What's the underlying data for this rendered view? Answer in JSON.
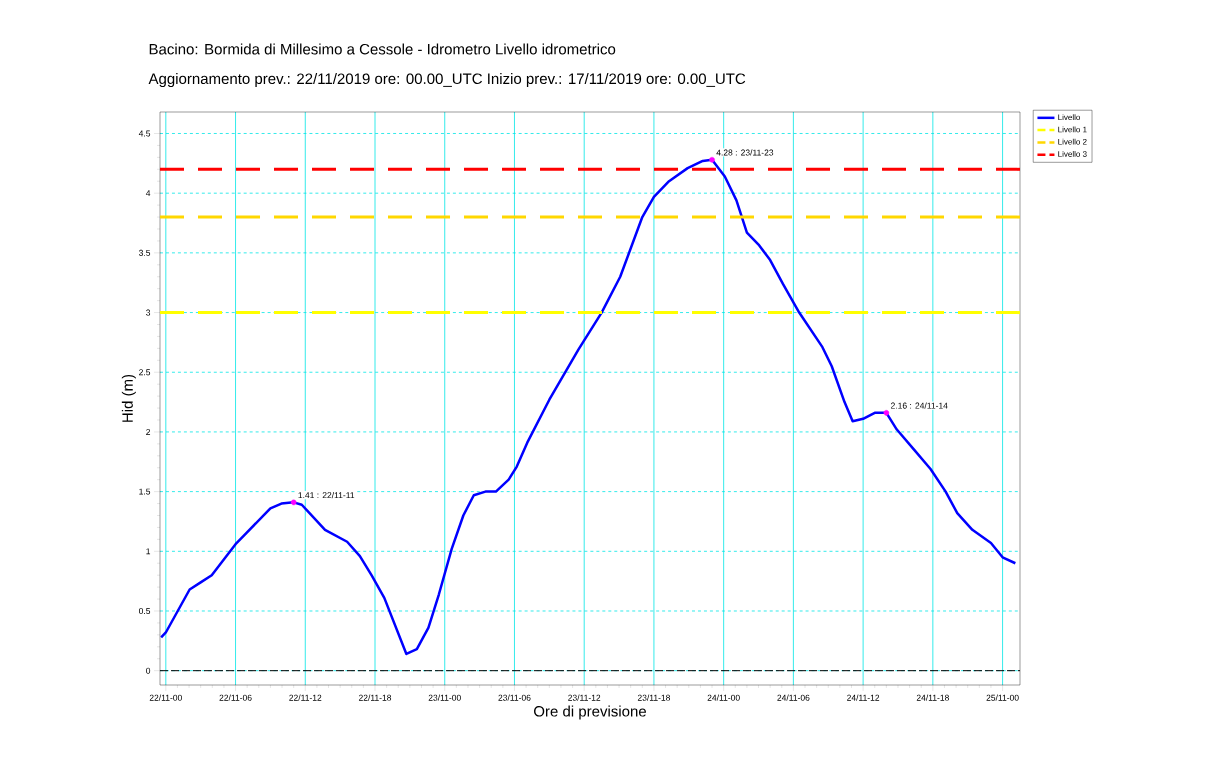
{
  "chart_data": {
    "type": "line",
    "title": "Bacino:  Bormida di Millesimo a Cessole - Idrometro        Livello idrometrico",
    "subtitle": "Aggiornamento prev.: 22/11/2019 ore: 00.00_UTC     Inizio prev.: 17/11/2019 ore: 0.00_UTC",
    "xlabel": "Ore di previsione",
    "ylabel": "Hid (m)",
    "xlim": [
      "2019-11-21T23:30",
      "2019-11-25T01:30"
    ],
    "ylim": [
      -0.12,
      4.68
    ],
    "xticks": [
      {
        "value": "2019-11-22T00:00",
        "label": "22/11-00"
      },
      {
        "value": "2019-11-22T06:00",
        "label": "22/11-06"
      },
      {
        "value": "2019-11-22T12:00",
        "label": "22/11-12"
      },
      {
        "value": "2019-11-22T18:00",
        "label": "22/11-18"
      },
      {
        "value": "2019-11-23T00:00",
        "label": "23/11-00"
      },
      {
        "value": "2019-11-23T06:00",
        "label": "23/11-06"
      },
      {
        "value": "2019-11-23T12:00",
        "label": "23/11-12"
      },
      {
        "value": "2019-11-23T18:00",
        "label": "23/11-18"
      },
      {
        "value": "2019-11-24T00:00",
        "label": "24/11-00"
      },
      {
        "value": "2019-11-24T06:00",
        "label": "24/11-06"
      },
      {
        "value": "2019-11-24T12:00",
        "label": "24/11-12"
      },
      {
        "value": "2019-11-24T18:00",
        "label": "24/11-18"
      },
      {
        "value": "2019-11-25T00:00",
        "label": "25/11-00"
      }
    ],
    "yticks": [
      0,
      0.5,
      1,
      1.5,
      2,
      2.5,
      3,
      3.5,
      4,
      4.5
    ],
    "grid": true,
    "legend": "right",
    "series": [
      {
        "name": "Livello",
        "color": "#0000ff",
        "line_style": "solid",
        "marker": "none",
        "x": [
          "2019-11-21T23:36",
          "2019-11-22T00:00",
          "2019-11-22T02:03",
          "2019-11-22T03:00",
          "2019-11-22T03:57",
          "2019-11-22T06:00",
          "2019-11-22T06:48",
          "2019-11-22T09:00",
          "2019-11-22T09:57",
          "2019-11-22T11:00",
          "2019-11-22T11:42",
          "2019-11-22T13:42",
          "2019-11-22T15:36",
          "2019-11-22T16:42",
          "2019-11-22T17:42",
          "2019-11-22T18:48",
          "2019-11-22T20:42",
          "2019-11-22T21:36",
          "2019-11-22T22:36",
          "2019-11-22T23:30",
          "2019-11-23T00:36",
          "2019-11-23T01:36",
          "2019-11-23T02:30",
          "2019-11-23T03:30",
          "2019-11-23T04:24",
          "2019-11-23T05:30",
          "2019-11-23T06:12",
          "2019-11-23T07:06",
          "2019-11-23T09:00",
          "2019-11-23T11:30",
          "2019-11-23T13:30",
          "2019-11-23T15:06",
          "2019-11-23T17:00",
          "2019-11-23T18:00",
          "2019-11-23T19:18",
          "2019-11-23T20:54",
          "2019-11-23T22:12",
          "2019-11-23T23:00",
          "2019-11-24T00:06",
          "2019-11-24T01:06",
          "2019-11-24T02:00",
          "2019-11-24T03:00",
          "2019-11-24T04:00",
          "2019-11-24T05:06",
          "2019-11-24T06:30",
          "2019-11-24T08:30",
          "2019-11-24T09:18",
          "2019-11-24T10:24",
          "2019-11-24T11:06",
          "2019-11-24T12:00",
          "2019-11-24T13:00",
          "2019-11-24T14:00",
          "2019-11-24T14:54",
          "2019-11-24T16:24",
          "2019-11-24T17:48",
          "2019-11-24T19:06",
          "2019-11-24T20:06",
          "2019-11-24T21:24",
          "2019-11-24T23:00",
          "2019-11-25T00:00",
          "2019-11-25T01:06"
        ],
        "values": [
          0.28,
          0.32,
          0.68,
          0.74,
          0.8,
          1.06,
          1.14,
          1.36,
          1.4,
          1.41,
          1.39,
          1.18,
          1.08,
          0.96,
          0.8,
          0.61,
          0.14,
          0.18,
          0.36,
          0.64,
          1.02,
          1.3,
          1.47,
          1.5,
          1.5,
          1.6,
          1.71,
          1.91,
          2.27,
          2.69,
          3.0,
          3.3,
          3.8,
          3.97,
          4.1,
          4.21,
          4.27,
          4.28,
          4.14,
          3.94,
          3.67,
          3.57,
          3.44,
          3.24,
          3.0,
          2.71,
          2.55,
          2.25,
          2.09,
          2.11,
          2.16,
          2.16,
          2.02,
          1.85,
          1.69,
          1.5,
          1.32,
          1.18,
          1.07,
          0.95,
          0.9
        ]
      },
      {
        "type": "scatter",
        "color": "#ff00ff",
        "marker": "circle",
        "x": [
          "2019-11-22T11:00",
          "2019-11-23T23:00",
          "2019-11-24T14:00"
        ],
        "values": [
          1.41,
          4.28,
          2.16
        ]
      }
    ],
    "ref_lines": [
      {
        "axis": "y",
        "value": 0,
        "color": "#000000",
        "line_style": "dashed"
      },
      {
        "axis": "y",
        "value": 3.0,
        "label": "Livello 1",
        "color": "#ffff00",
        "line_style": "dashed"
      },
      {
        "axis": "y",
        "value": 3.8,
        "label": "Livello 2",
        "color": "#ffd700",
        "line_style": "dashed"
      },
      {
        "axis": "y",
        "value": 4.2,
        "label": "Livello 3",
        "color": "#ff0000",
        "line_style": "dashed"
      }
    ],
    "annotations": [
      {
        "text": "1.41   :   22/11-11",
        "x": "2019-11-22T11:00",
        "y": 1.41
      },
      {
        "text": "4.28   :   23/11-23",
        "x": "2019-11-23T23:00",
        "y": 4.28
      },
      {
        "text": "2.16   :   24/11-14",
        "x": "2019-11-24T14:00",
        "y": 2.16
      }
    ]
  }
}
